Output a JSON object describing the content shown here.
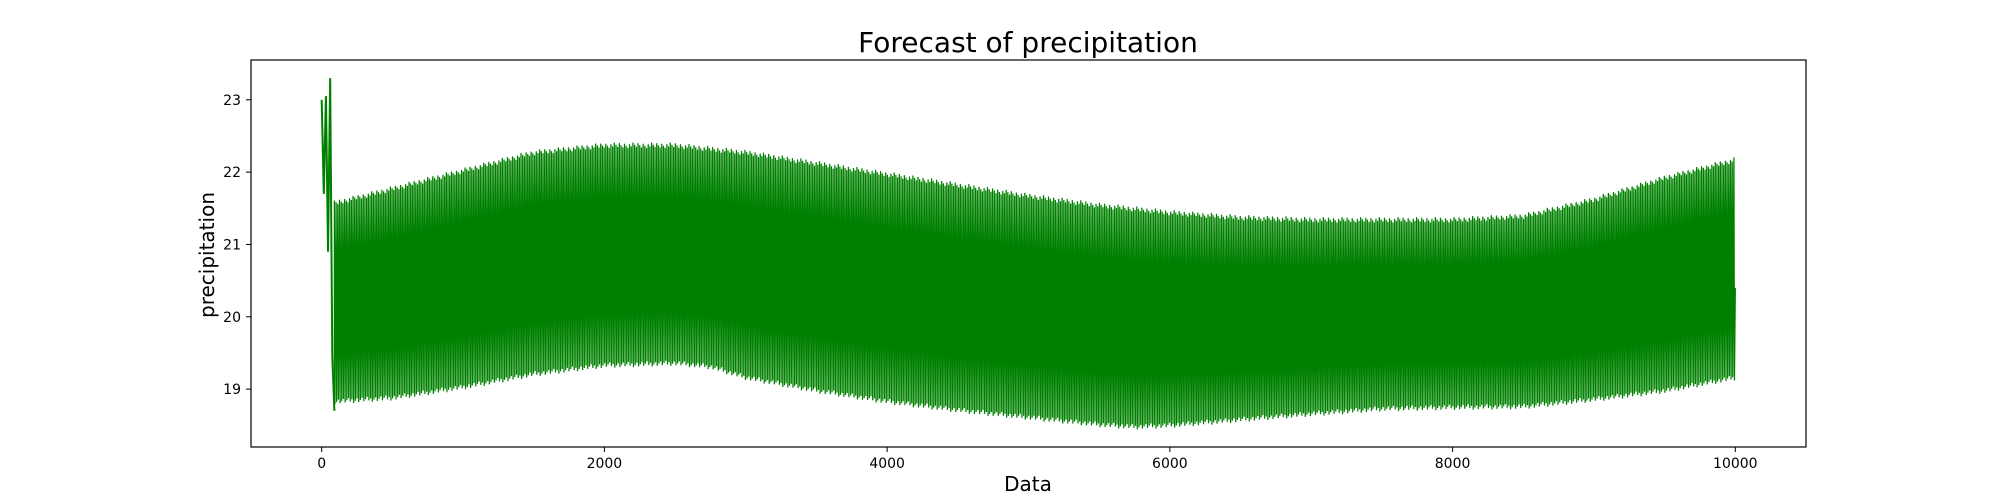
{
  "chart_data": {
    "type": "line",
    "title": "Forecast of precipitation",
    "xlabel": "Data",
    "ylabel": "precipitation",
    "xlim": [
      -500,
      10500
    ],
    "ylim": [
      18.2,
      23.55
    ],
    "xticks": [
      0,
      2000,
      4000,
      6000,
      8000,
      10000
    ],
    "yticks": [
      19,
      20,
      21,
      22,
      23
    ],
    "grid": false,
    "line_color": "#008000",
    "series": [
      {
        "style": "dense daily oscillation between lower and upper envelope",
        "start_spikes": {
          "x": [
            0,
            15,
            30,
            45,
            60,
            75,
            90
          ],
          "y": [
            23.0,
            21.7,
            23.05,
            20.9,
            23.3,
            19.45,
            18.7
          ]
        },
        "upper_envelope": {
          "x": [
            90,
            500,
            1000,
            1500,
            2000,
            2500,
            3000,
            3500,
            4000,
            4500,
            5000,
            5500,
            6000,
            6500,
            7000,
            7500,
            8000,
            8500,
            9000,
            9500,
            10000
          ],
          "y": [
            21.6,
            21.8,
            22.05,
            22.3,
            22.4,
            22.4,
            22.3,
            22.15,
            22.0,
            21.85,
            21.7,
            21.57,
            21.47,
            21.4,
            21.37,
            21.37,
            21.37,
            21.42,
            21.65,
            21.95,
            22.2
          ]
        },
        "lower_envelope": {
          "x": [
            90,
            500,
            1000,
            1500,
            2000,
            2500,
            2750,
            3000,
            3500,
            4000,
            4500,
            5000,
            5500,
            5750,
            6000,
            6500,
            7000,
            7500,
            8000,
            8500,
            9000,
            9500,
            10000
          ],
          "y": [
            18.8,
            18.85,
            19.0,
            19.18,
            19.3,
            19.33,
            19.28,
            19.13,
            18.95,
            18.8,
            18.68,
            18.58,
            18.48,
            18.45,
            18.47,
            18.55,
            18.63,
            18.7,
            18.72,
            18.73,
            18.83,
            18.95,
            19.13
          ]
        }
      }
    ]
  }
}
